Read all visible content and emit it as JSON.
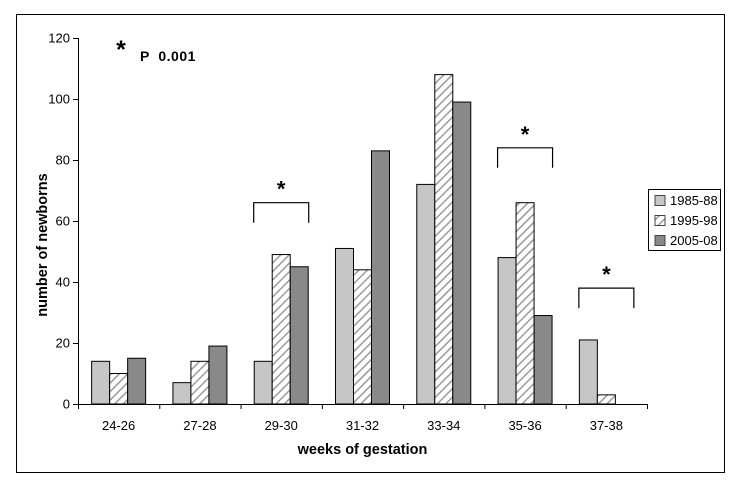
{
  "figure": {
    "background": "#ffffff",
    "border_color": "#000000"
  },
  "chart_data": {
    "type": "bar",
    "title": "",
    "xlabel": "weeks of gestation",
    "ylabel": "number of newborns",
    "categories": [
      "24-26",
      "27-28",
      "29-30",
      "31-32",
      "33-34",
      "35-36",
      "37-38"
    ],
    "series": [
      {
        "name": "1985-88",
        "style": "light",
        "color": "#c6c6c6",
        "values": [
          14,
          7,
          14,
          51,
          72,
          48,
          21
        ]
      },
      {
        "name": "1995-98",
        "style": "hatched",
        "color": "#ffffff",
        "hatch_color": "#9a9a9a",
        "values": [
          10,
          14,
          49,
          44,
          108,
          66,
          3
        ]
      },
      {
        "name": "2005-08",
        "style": "dark",
        "color": "#898989",
        "values": [
          15,
          19,
          45,
          83,
          99,
          29,
          0
        ]
      }
    ],
    "ylim": [
      0,
      120
    ],
    "ytick_step": 20,
    "grid": false,
    "legend_position": "right",
    "bar_edge_color": "#000000",
    "annotations": {
      "p_note": {
        "symbol": "*",
        "text": "P  0.001"
      },
      "significance_brackets": [
        {
          "category": "29-30",
          "symbol": "*",
          "top_value": 66
        },
        {
          "category": "35-36",
          "symbol": "*",
          "top_value": 84
        },
        {
          "category": "37-38",
          "symbol": "*",
          "top_value": 38
        }
      ]
    }
  }
}
